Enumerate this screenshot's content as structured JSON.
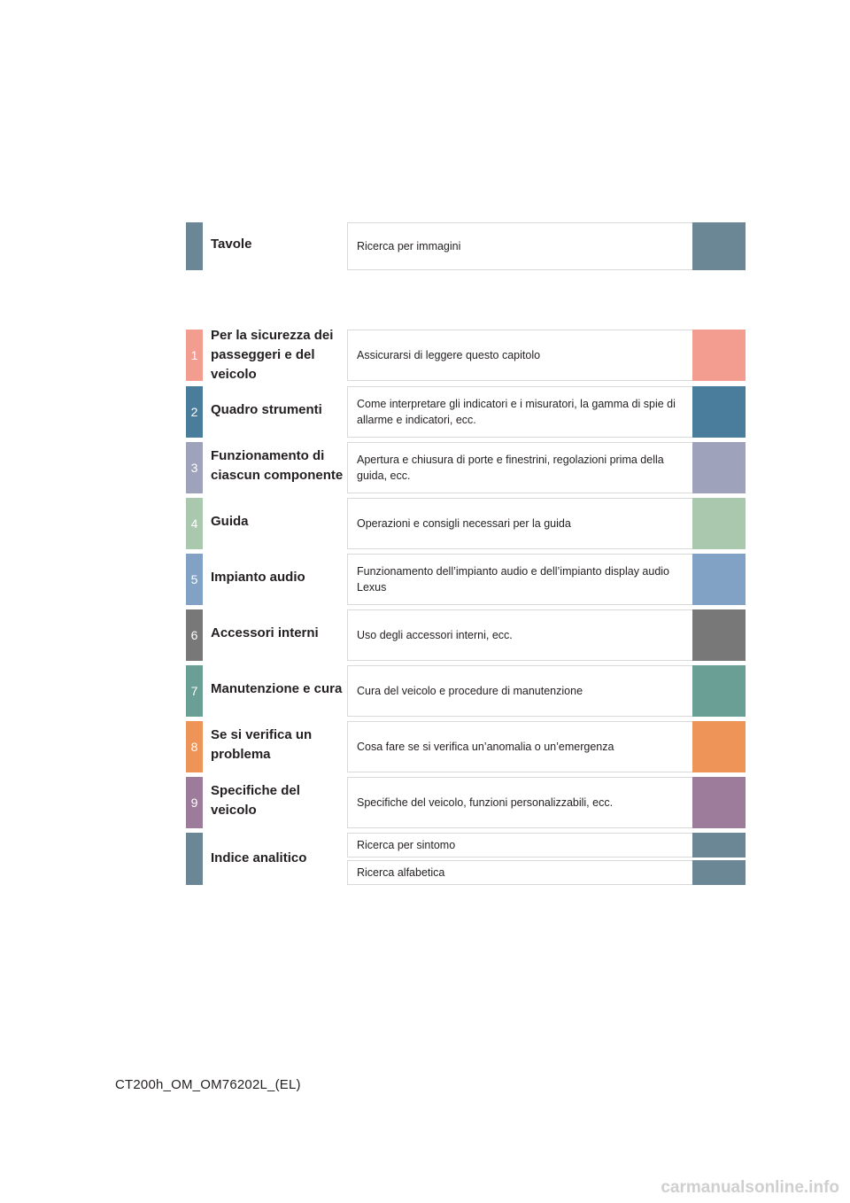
{
  "colors": {
    "tavole": "#6b8796",
    "c1": "#f29d8f",
    "c2": "#4a7d9b",
    "c3": "#9ea2ba",
    "c4": "#a9c8ad",
    "c5": "#81a2c5",
    "c6": "#787878",
    "c7": "#6a9f96",
    "c8": "#ee9459",
    "c9": "#9d7c9b",
    "index": "#6b8796"
  },
  "tavole": {
    "title": "Tavole",
    "desc": "Ricerca per immagini"
  },
  "chapters": [
    {
      "num": "1",
      "title": "Per la sicurezza dei passeggeri e del veicolo",
      "desc": "Assicurarsi di leggere questo capitolo"
    },
    {
      "num": "2",
      "title": "Quadro strumenti",
      "desc": "Come interpretare gli indicatori e i misuratori, la gamma di spie di allarme e indicatori, ecc."
    },
    {
      "num": "3",
      "title": "Funzionamento di ciascun componente",
      "desc": "Apertura e chiusura di porte e finestrini, regolazioni prima della guida, ecc."
    },
    {
      "num": "4",
      "title": "Guida",
      "desc": "Operazioni e consigli necessari per la guida"
    },
    {
      "num": "5",
      "title": "Impianto audio",
      "desc": "Funzionamento dell’impianto audio e dell’impianto display audio Lexus"
    },
    {
      "num": "6",
      "title": "Accessori interni",
      "desc": "Uso degli accessori interni, ecc."
    },
    {
      "num": "7",
      "title": "Manutenzione e cura",
      "desc": "Cura del veicolo e procedure di manutenzione"
    },
    {
      "num": "8",
      "title": "Se si verifica un problema",
      "desc": "Cosa fare se si verifica un’anomalia o un’emergenza"
    },
    {
      "num": "9",
      "title": "Specifiche del veicolo",
      "desc": "Specifiche del veicolo, funzioni personalizzabili, ecc."
    }
  ],
  "index": {
    "title": "Indice analitico",
    "sub1": "Ricerca per sintomo",
    "sub2": "Ricerca alfabetica"
  },
  "footer": "CT200h_OM_OM76202L_(EL)",
  "watermark": "carmanualsonline.info"
}
